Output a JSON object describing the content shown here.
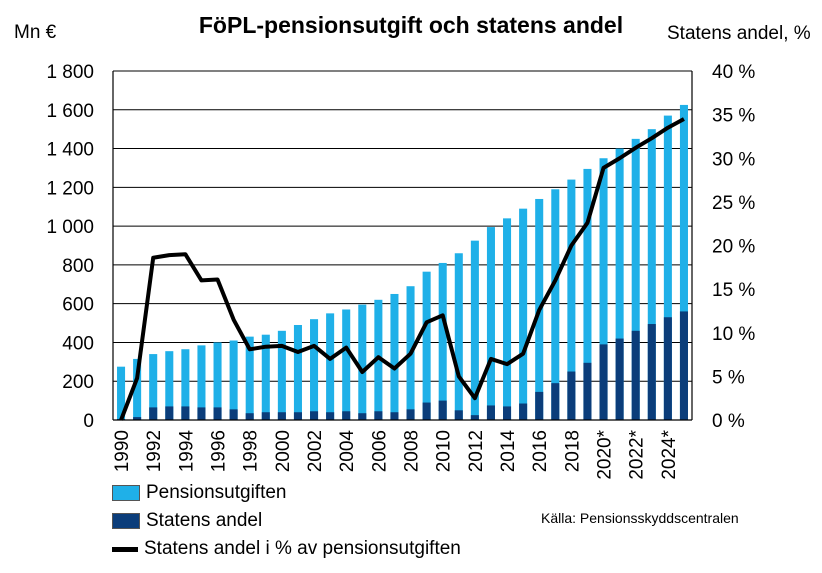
{
  "chart_data": {
    "type": "bar",
    "title": "FöPL-pensionsutgift och statens andel",
    "ylabel": "Mn €",
    "y2label": "Statens andel, %",
    "ylim": [
      0,
      1800
    ],
    "y2lim": [
      0,
      40
    ],
    "yticks": [
      "0",
      "200",
      "400",
      "600",
      "800",
      "1 000",
      "1 200",
      "1 400",
      "1 600",
      "1 800"
    ],
    "y2ticks": [
      "0 %",
      "5 %",
      "10 %",
      "15 %",
      "20 %",
      "25 %",
      "30 %",
      "35 %",
      "40 %"
    ],
    "categories": [
      "1990",
      "1991",
      "1992",
      "1993",
      "1994",
      "1995",
      "1996",
      "1997",
      "1998",
      "1999",
      "2000",
      "2001",
      "2002",
      "2003",
      "2004",
      "2005",
      "2006",
      "2007",
      "2008",
      "2009",
      "2010",
      "2011",
      "2012",
      "2013",
      "2014",
      "2015",
      "2016",
      "2017",
      "2018",
      "2019",
      "2020*",
      "2021*",
      "2022*",
      "2023*",
      "2024*",
      "2025*"
    ],
    "xtick_labels": [
      "1990",
      "1992",
      "1994",
      "1996",
      "1998",
      "2000",
      "2002",
      "2004",
      "2006",
      "2008",
      "2010",
      "2012",
      "2014",
      "2016",
      "2018",
      "2020*",
      "2022*",
      "2024*"
    ],
    "series": [
      {
        "name": "Pensionsutgiften",
        "kind": "bar",
        "color": "#1fb0e8",
        "values": [
          275,
          315,
          340,
          355,
          365,
          385,
          400,
          410,
          430,
          440,
          460,
          490,
          520,
          550,
          570,
          595,
          620,
          650,
          690,
          765,
          810,
          860,
          925,
          995,
          1040,
          1090,
          1140,
          1190,
          1240,
          1295,
          1350,
          1400,
          1450,
          1500,
          1570,
          1625
        ]
      },
      {
        "name": "Statens andel",
        "kind": "bar",
        "color": "#0b3d7a",
        "values": [
          5,
          15,
          65,
          70,
          70,
          65,
          65,
          55,
          35,
          40,
          40,
          40,
          45,
          40,
          45,
          35,
          45,
          40,
          55,
          90,
          100,
          50,
          25,
          75,
          70,
          85,
          145,
          190,
          250,
          295,
          390,
          420,
          460,
          495,
          530,
          560
        ]
      },
      {
        "name": "Statens andel i % av pensionsutgiften",
        "kind": "line",
        "axis": "right",
        "color": "#000000",
        "values": [
          0,
          4.8,
          18.6,
          18.9,
          19.0,
          16.0,
          16.1,
          11.5,
          8.1,
          8.4,
          8.5,
          7.8,
          8.5,
          7.0,
          8.3,
          5.5,
          7.2,
          5.9,
          7.6,
          11.2,
          12.0,
          5.0,
          2.5,
          7.0,
          6.4,
          7.6,
          12.6,
          16.0,
          20.0,
          22.6,
          28.9,
          30.0,
          31.2,
          32.3,
          33.5,
          34.5
        ]
      }
    ],
    "legend_position": "bottom-left",
    "grid": true,
    "source": "Källa: Pensionsskyddscentralen"
  }
}
